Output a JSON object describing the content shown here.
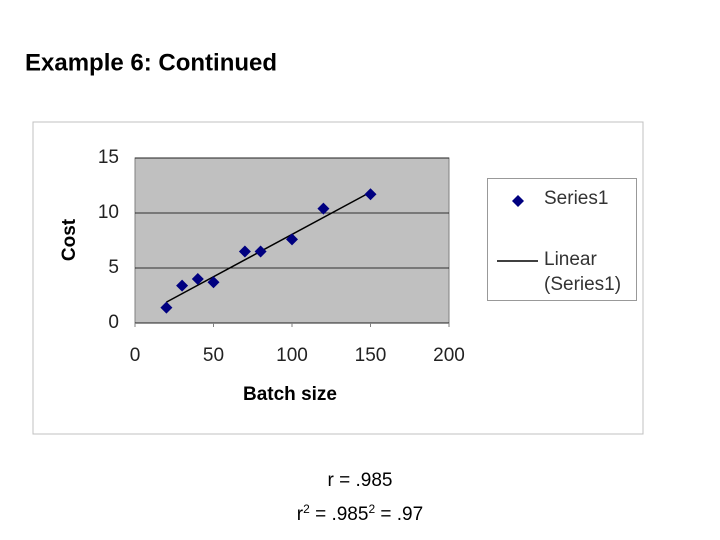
{
  "chart_data": {
    "type": "scatter",
    "title": "Example 6: Continued",
    "x_label": "Batch size",
    "y_label": "Cost",
    "series": [
      {
        "name": "Series1",
        "color": "#000080",
        "x": [
          20,
          30,
          40,
          50,
          70,
          80,
          100,
          120,
          150
        ],
        "values": [
          1.4,
          3.4,
          4.0,
          3.7,
          6.5,
          6.5,
          7.6,
          10.4,
          11.7
        ]
      },
      {
        "name": "Linear (Series1)",
        "color": "#000000",
        "x": [
          20,
          150
        ],
        "values": [
          1.9,
          11.9
        ]
      }
    ],
    "xlim": [
      0,
      200
    ],
    "xticks": [
      0,
      50,
      100,
      150,
      200
    ],
    "ylim": [
      0,
      15
    ],
    "yticks": [
      0,
      5,
      10,
      15
    ],
    "grid": true,
    "annotations": [
      [
        "r = .985"
      ],
      [
        "r",
        "2",
        " = .985",
        "2",
        " = .97"
      ]
    ]
  }
}
